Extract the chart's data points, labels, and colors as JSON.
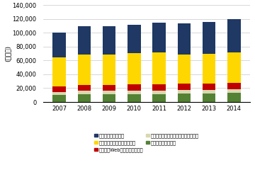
{
  "years": [
    "2007",
    "2008",
    "2009",
    "2010",
    "2011",
    "2012",
    "2013",
    "2014"
  ],
  "consumer": [
    36000,
    40000,
    40000,
    41000,
    43000,
    45000,
    46000,
    48000
  ],
  "antivirus": [
    42000,
    44000,
    44000,
    45000,
    46000,
    42000,
    43000,
    44000
  ],
  "web_security": [
    8000,
    9000,
    9000,
    9500,
    9500,
    9500,
    9500,
    10000
  ],
  "message_security": [
    4500,
    5000,
    5000,
    5000,
    5000,
    5000,
    5000,
    5000
  ],
  "other": [
    10000,
    11000,
    11000,
    11000,
    11000,
    12000,
    12500,
    13000
  ],
  "colors": {
    "consumer": "#1f3864",
    "antivirus": "#ffd700",
    "web_security": "#c00000",
    "message_security": "#d9d9b0",
    "other": "#548235"
  },
  "legend_labels": [
    "コンシューマー製品",
    "企業向けアンチウイルス製品",
    "企業向けWebセキュリティ製品",
    "企業向けメッセージセキュリティ製品",
    "企業向けその他製品"
  ],
  "ylabel": "(百万円)",
  "ylim": [
    0,
    140000
  ],
  "yticks": [
    0,
    20000,
    40000,
    60000,
    80000,
    100000,
    120000,
    140000
  ],
  "background_color": "#ffffff",
  "grid_color": "#c8c8c8"
}
